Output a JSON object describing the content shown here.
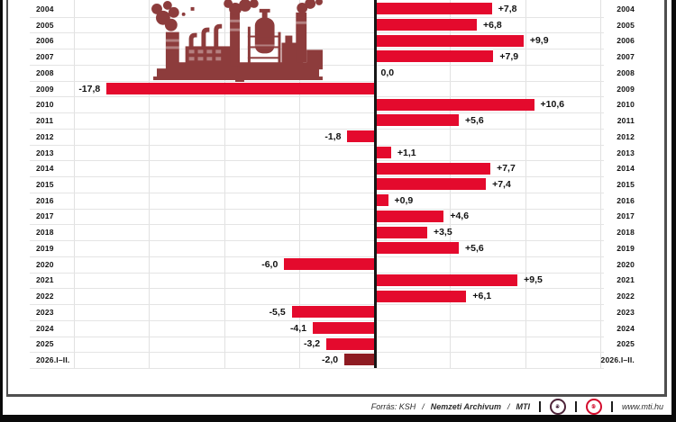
{
  "chart_data": {
    "type": "bar",
    "orientation": "horizontal",
    "title": "",
    "categories": [
      "2004",
      "2005",
      "2006",
      "2007",
      "2008",
      "2009",
      "2010",
      "2011",
      "2012",
      "2013",
      "2014",
      "2015",
      "2016",
      "2017",
      "2018",
      "2019",
      "2020",
      "2021",
      "2022",
      "2023",
      "2024",
      "2025",
      "2026.I–II."
    ],
    "values": [
      7.8,
      6.8,
      9.9,
      7.9,
      0.0,
      -17.8,
      10.6,
      5.6,
      -1.8,
      1.1,
      7.7,
      7.4,
      0.9,
      4.6,
      3.5,
      5.6,
      -6.0,
      9.5,
      6.1,
      -5.5,
      -4.1,
      -3.2,
      -2.0
    ],
    "labels": [
      "+7,8",
      "+6,8",
      "+9,9",
      "+7,9",
      "0,0",
      "-17,8",
      "+10,6",
      "+5,6",
      "-1,8",
      "+1,1",
      "+7,7",
      "+7,4",
      "+0,9",
      "+4,6",
      "+3,5",
      "+5,6",
      "-6,0",
      "+9,5",
      "+6,1",
      "-5,5",
      "-4,1",
      "-3,2",
      "-2,0"
    ],
    "xlim": [
      -20,
      15
    ],
    "gridline_step": 5,
    "grid": true,
    "legend": "none",
    "bar_color": "#e40a2d",
    "last_bar_color": "#8e1b22",
    "axis_color": "#161616"
  },
  "illustration": {
    "name": "factory-silhouette",
    "color": "#8d3c3c"
  },
  "footer": {
    "source_label": "Forrás: KSH",
    "slash1": "/",
    "archive_label": "Nemzeti Archivum",
    "slash2": "/",
    "agency_label": "MTI",
    "mtva_badge": "MTVA",
    "mti_badge": "MTI",
    "website": "www.mti.hu"
  }
}
